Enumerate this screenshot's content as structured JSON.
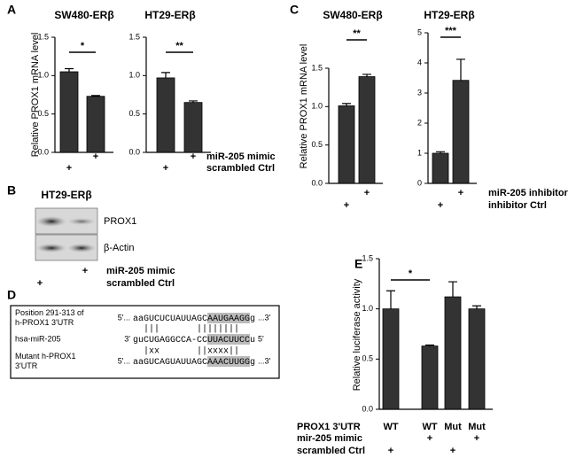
{
  "panel_letters": [
    "A",
    "B",
    "C",
    "D",
    "E"
  ],
  "chart_data": [
    {
      "type": "bar",
      "title": "SW480-ERβ",
      "y_label": "Relative PROX1 mRNA level",
      "categories": [
        null,
        null
      ],
      "values": [
        1.05,
        0.73
      ],
      "errors": [
        0.04,
        0.01
      ],
      "color": "#333333",
      "ylim": [
        0,
        1.5
      ],
      "yticks": [
        {
          "value": 0,
          "label": "0.0"
        },
        0.5,
        {
          "value": 1,
          "label": "1.0"
        },
        1.5
      ],
      "significance": "*",
      "conditions": [
        {
          "marks": [
            null,
            "+"
          ]
        },
        {
          "marks": [
            "+",
            null
          ]
        }
      ]
    },
    {
      "type": "bar",
      "title": "HT29-ERβ",
      "categories": [
        null,
        null
      ],
      "values": [
        0.97,
        0.65
      ],
      "errors": [
        0.07,
        0.02
      ],
      "color": "#333333",
      "ylim": [
        0,
        1.5
      ],
      "yticks": [
        {
          "value": 0,
          "label": "0.0"
        },
        0.5,
        {
          "value": 1,
          "label": "1.0"
        },
        1.5
      ],
      "significance": "**",
      "conditions": [
        {
          "label": "miR-205 mimic",
          "marks": [
            null,
            "+"
          ]
        },
        {
          "label": "scrambled Ctrl",
          "marks": [
            "+",
            null
          ]
        }
      ]
    },
    {
      "type": "bar",
      "title": "SW480-ERβ",
      "y_label": "Relative PROX1 mRNA level",
      "categories": [
        null,
        null
      ],
      "values": [
        1.01,
        1.39
      ],
      "errors": [
        0.03,
        0.03
      ],
      "color": "#333333",
      "ylim": [
        0,
        1.5
      ],
      "yticks": [
        {
          "value": 0,
          "label": "0.0"
        },
        0.5,
        {
          "value": 1,
          "label": "1.0"
        },
        1.5
      ],
      "significance": "**",
      "conditions": [
        {
          "marks": [
            null,
            "+"
          ]
        },
        {
          "marks": [
            "+",
            null
          ]
        }
      ]
    },
    {
      "type": "bar",
      "title": "HT29-ERβ",
      "categories": [
        null,
        null
      ],
      "values": [
        1.0,
        3.42
      ],
      "errors": [
        0.05,
        0.7
      ],
      "color": "#333333",
      "ylim": [
        0,
        5
      ],
      "yticks": [
        0,
        1,
        2,
        3,
        4,
        5
      ],
      "significance": "***",
      "conditions": [
        {
          "label": "miR-205 inhibitor",
          "marks": [
            null,
            "+"
          ]
        },
        {
          "label": "inhibitor Ctrl",
          "marks": [
            "+",
            null
          ]
        }
      ]
    },
    {
      "type": "bar",
      "y_label": "Relative luciferase activity",
      "x_label": "PROX1 3'UTR",
      "categories": [
        "WT",
        "WT",
        "Mut",
        "Mut"
      ],
      "values": [
        1.0,
        0.63,
        1.12,
        1.0
      ],
      "errors": [
        0.18,
        0.01,
        0.15,
        0.03
      ],
      "color": "#333333",
      "ylim": [
        0,
        1.5
      ],
      "yticks": [
        {
          "value": 0,
          "label": "0.0"
        },
        0.5,
        {
          "value": 1,
          "label": "1.0"
        },
        1.5
      ],
      "significance": "*",
      "conditions": [
        {
          "label": "mir-205 mimic",
          "marks": [
            null,
            "+",
            null,
            "+"
          ]
        },
        {
          "label": "scrambled Ctrl",
          "marks": [
            "+",
            null,
            "+",
            null
          ]
        }
      ]
    }
  ],
  "blot": {
    "title": "HT29-ERβ",
    "bands": [
      "PROX1",
      "β-Actin"
    ],
    "conditions": [
      {
        "label": "miR-205 mimic",
        "marks": [
          null,
          "+"
        ]
      },
      {
        "label": "scrambled Ctrl",
        "marks": [
          "+",
          null
        ]
      }
    ]
  },
  "sequence_panel": {
    "rows": [
      {
        "label_lines": [
          "Position 291-313 of",
          "h-PROX1 3'UTR"
        ],
        "start": "5'...",
        "before": "aaGUCUCUAUUAGC",
        "highlight": "AAUGAAGG",
        "after": "g",
        "end": "...3'"
      },
      {
        "label_lines": [
          "hsa-miR-205"
        ],
        "start": "3'",
        "before": "guCUGAGGCCA-CC",
        "highlight": "UUACUUCC",
        "after": "u",
        "end": "5'"
      },
      {
        "label_lines": [
          "Mutant h-PROX1",
          "3'UTR"
        ],
        "start": "5'...",
        "before": "aaGUCAGUAUUAGC",
        "highlight": "AAACUUGG",
        "after": "g",
        "end": "...3'"
      }
    ],
    "pairings": [
      "  |||       ||||||||  ",
      "  |xx       ||xxxx||  "
    ]
  }
}
